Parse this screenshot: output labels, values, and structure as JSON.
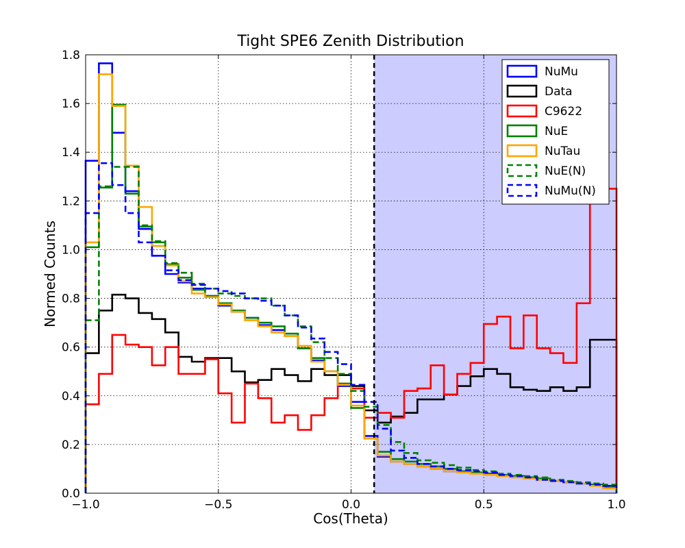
{
  "chart_data": {
    "type": "step",
    "title": "Tight SPE6 Zenith Distribution",
    "xlabel": "Cos(Theta)",
    "ylabel": "Normed Counts",
    "xlim": [
      -1.0,
      1.0
    ],
    "ylim": [
      0.0,
      1.8
    ],
    "xticks": [
      -1.0,
      -0.5,
      0.0,
      0.5,
      1.0
    ],
    "xtick_labels": [
      "−1.0",
      "−0.5",
      "0.0",
      "0.5",
      "1.0"
    ],
    "yticks": [
      0.0,
      0.2,
      0.4,
      0.6,
      0.8,
      1.0,
      1.2,
      1.4,
      1.6,
      1.8
    ],
    "ytick_labels": [
      "0.0",
      "0.2",
      "0.4",
      "0.6",
      "0.8",
      "1.0",
      "1.2",
      "1.4",
      "1.6",
      "1.8"
    ],
    "grid": true,
    "legend_position": "top-right",
    "cut_line_x": 0.087,
    "shaded_region": {
      "x_from": 0.087,
      "x_to": 1.0,
      "color": "#ccccff"
    },
    "bin_edges": [
      -1.0,
      -0.95,
      -0.9,
      -0.85,
      -0.8,
      -0.75,
      -0.7,
      -0.65,
      -0.6,
      -0.55,
      -0.5,
      -0.45,
      -0.4,
      -0.35,
      -0.3,
      -0.25,
      -0.2,
      -0.15,
      -0.1,
      -0.05,
      0.0,
      0.05,
      0.1,
      0.15,
      0.2,
      0.25,
      0.3,
      0.35,
      0.4,
      0.45,
      0.5,
      0.55,
      0.6,
      0.65,
      0.7,
      0.75,
      0.8,
      0.85,
      0.9,
      0.95,
      1.0
    ],
    "series": [
      {
        "name": "NuMu",
        "color": "#0000ff",
        "dash": "solid",
        "values": [
          1.365,
          1.765,
          1.48,
          1.24,
          1.085,
          0.975,
          0.9,
          0.865,
          0.84,
          0.81,
          0.77,
          0.745,
          0.72,
          0.69,
          0.67,
          0.645,
          0.595,
          0.545,
          0.5,
          0.44,
          0.375,
          0.235,
          0.15,
          0.13,
          0.12,
          0.11,
          0.1,
          0.09,
          0.09,
          0.085,
          0.08,
          0.075,
          0.07,
          0.065,
          0.06,
          0.05,
          0.045,
          0.04,
          0.035,
          0.03
        ]
      },
      {
        "name": "Data",
        "color": "#000000",
        "dash": "solid",
        "values": [
          0.575,
          0.75,
          0.815,
          0.8,
          0.74,
          0.715,
          0.66,
          0.56,
          0.54,
          0.555,
          0.555,
          0.5,
          0.455,
          0.465,
          0.51,
          0.485,
          0.46,
          0.51,
          0.485,
          0.485,
          0.44,
          0.34,
          0.29,
          0.315,
          0.33,
          0.385,
          0.385,
          0.405,
          0.44,
          0.48,
          0.51,
          0.49,
          0.435,
          0.425,
          0.42,
          0.435,
          0.42,
          0.435,
          0.63,
          0.63
        ]
      },
      {
        "name": "C9622",
        "color": "#ff0000",
        "dash": "solid",
        "values": [
          0.365,
          0.49,
          0.65,
          0.61,
          0.6,
          0.525,
          0.6,
          0.49,
          0.49,
          0.55,
          0.41,
          0.29,
          0.45,
          0.39,
          0.29,
          0.32,
          0.26,
          0.32,
          0.39,
          0.45,
          0.43,
          0.31,
          0.33,
          0.31,
          0.42,
          0.43,
          0.525,
          0.405,
          0.49,
          0.535,
          0.695,
          0.725,
          0.595,
          0.73,
          0.595,
          0.575,
          0.535,
          0.78,
          1.25,
          1.25
        ]
      },
      {
        "name": "NuE",
        "color": "#008000",
        "dash": "solid",
        "values": [
          1.01,
          1.255,
          1.595,
          1.23,
          1.095,
          1.03,
          0.94,
          0.885,
          0.835,
          0.81,
          0.78,
          0.75,
          0.72,
          0.7,
          0.685,
          0.655,
          0.595,
          0.555,
          0.5,
          0.45,
          0.35,
          0.225,
          0.17,
          0.14,
          0.13,
          0.12,
          0.11,
          0.1,
          0.09,
          0.085,
          0.08,
          0.075,
          0.07,
          0.065,
          0.06,
          0.05,
          0.045,
          0.04,
          0.035,
          0.025
        ]
      },
      {
        "name": "NuTau",
        "color": "#ffa500",
        "dash": "solid",
        "values": [
          1.03,
          1.72,
          1.59,
          1.345,
          1.175,
          1.015,
          0.935,
          0.87,
          0.82,
          0.805,
          0.775,
          0.745,
          0.71,
          0.685,
          0.66,
          0.645,
          0.605,
          0.54,
          0.5,
          0.445,
          0.36,
          0.225,
          0.155,
          0.13,
          0.12,
          0.11,
          0.1,
          0.09,
          0.085,
          0.08,
          0.075,
          0.07,
          0.065,
          0.06,
          0.055,
          0.05,
          0.045,
          0.04,
          0.03,
          0.02
        ]
      },
      {
        "name": "NuE(N)",
        "color": "#008000",
        "dash": "dashed",
        "values": [
          0.71,
          1.26,
          1.34,
          1.34,
          1.1,
          1.035,
          0.945,
          0.905,
          0.86,
          0.84,
          0.82,
          0.81,
          0.8,
          0.8,
          0.77,
          0.73,
          0.685,
          0.62,
          0.555,
          0.49,
          0.42,
          0.355,
          0.28,
          0.21,
          0.165,
          0.135,
          0.125,
          0.115,
          0.105,
          0.095,
          0.09,
          0.08,
          0.075,
          0.07,
          0.065,
          0.055,
          0.05,
          0.045,
          0.04,
          0.035
        ]
      },
      {
        "name": "NuMu(N)",
        "color": "#0000ff",
        "dash": "dashed",
        "values": [
          1.15,
          1.355,
          1.265,
          1.15,
          1.03,
          0.975,
          0.915,
          0.875,
          0.855,
          0.84,
          0.83,
          0.82,
          0.8,
          0.79,
          0.77,
          0.73,
          0.68,
          0.635,
          0.58,
          0.53,
          0.445,
          0.375,
          0.265,
          0.175,
          0.145,
          0.12,
          0.11,
          0.1,
          0.095,
          0.09,
          0.085,
          0.075,
          0.07,
          0.065,
          0.055,
          0.05,
          0.045,
          0.04,
          0.035,
          0.03
        ]
      }
    ]
  }
}
